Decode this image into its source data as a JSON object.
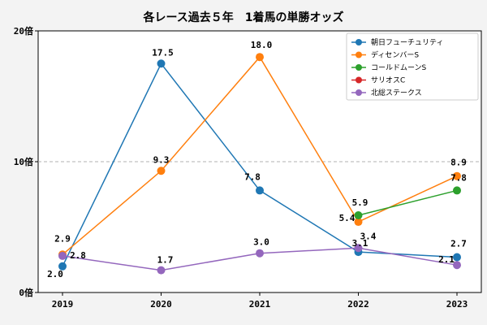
{
  "chart_data": {
    "type": "line",
    "title": "各レース過去５年　1着馬の単勝オッズ",
    "categories": [
      "2019",
      "2020",
      "2021",
      "2022",
      "2023"
    ],
    "ylim": [
      0,
      20
    ],
    "yticks": [
      0,
      10,
      20
    ],
    "ytick_labels": [
      "0倍",
      "10倍",
      "20倍"
    ],
    "grid": "dashed horizontal line at 10",
    "legend_position": "top-right",
    "series": [
      {
        "name": "朝日フューチュリティ",
        "color": "#1f77b4",
        "values": [
          2.0,
          17.5,
          7.8,
          3.1,
          2.7
        ],
        "labels": [
          "2.0",
          "17.5",
          "7.8",
          "3.1",
          "2.7"
        ]
      },
      {
        "name": "ディセンバーS",
        "color": "#ff7f0e",
        "values": [
          2.9,
          9.3,
          18.0,
          5.4,
          8.9
        ],
        "labels": [
          "2.9",
          "9.3",
          "18.0",
          "5.4",
          "8.9"
        ]
      },
      {
        "name": "コールドムーンS",
        "color": "#2ca02c",
        "values": [
          null,
          null,
          null,
          5.9,
          7.8
        ],
        "labels": [
          null,
          null,
          null,
          "5.9",
          "7.8"
        ]
      },
      {
        "name": "サリオスC",
        "color": "#d62728",
        "values": [
          null,
          null,
          null,
          null,
          null
        ],
        "labels": [
          null,
          null,
          null,
          null,
          null
        ]
      },
      {
        "name": "北総ステークス",
        "color": "#9467bd",
        "values": [
          2.8,
          1.7,
          3.0,
          3.4,
          2.1
        ],
        "labels": [
          "2.8",
          "1.7",
          "3.0",
          "3.4",
          "2.1"
        ]
      }
    ]
  }
}
